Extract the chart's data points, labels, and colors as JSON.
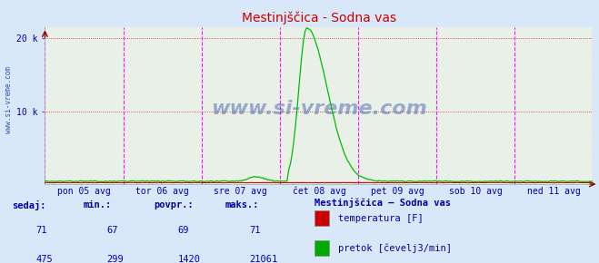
{
  "title": "Mestinjščica - Sodna vas",
  "bg_color": "#d8e8f8",
  "plot_bg_color": "#e8f0e8",
  "x_labels": [
    "pon 05 avg",
    "tor 06 avg",
    "sre 07 avg",
    "čet 08 avg",
    "pet 09 avg",
    "sob 10 avg",
    "ned 11 avg"
  ],
  "n_points": 336,
  "ymax": 21500,
  "temp_color": "#cc0000",
  "flow_color": "#00bb00",
  "grid_color_h_dotted": "#dd2222",
  "grid_color_v": "#ff00ff",
  "watermark": "www.si-vreme.com",
  "watermark_color": "#3355aa",
  "sidebar_text": "www.si-vreme.com",
  "sidebar_color": "#3355aa",
  "temp_sedaj": 71,
  "temp_min": 67,
  "temp_povpr": 69,
  "temp_maks": 71,
  "flow_sedaj": 475,
  "flow_min": 299,
  "flow_povpr": 1420,
  "flow_maks": 21061,
  "legend_title": "Mestinjščica – Sodna vas",
  "label_temp": "temperatura [F]",
  "label_flow": "pretok [čevelj3/min]",
  "col_sedaj": "sedaj:",
  "col_min": "min.:",
  "col_povpr": "povpr.:",
  "col_maks": "maks.:",
  "label_color": "#0000aa",
  "value_color": "#0000cc",
  "temp_rect_color": "#cc0000",
  "flow_rect_color": "#00aa00"
}
